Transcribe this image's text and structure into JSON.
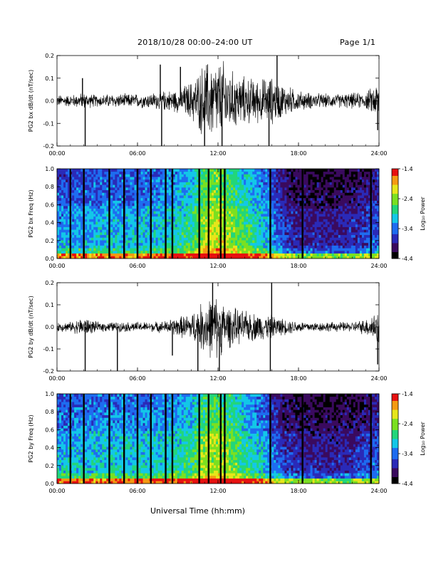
{
  "header": {
    "title": "2018/10/28   00:00–24:00 UT",
    "page": "Page 1/1"
  },
  "footer": {
    "xlabel": "Universal Time (hh:mm)"
  },
  "colors": {
    "trace": "#000000",
    "colormap": [
      "#000000",
      "#3a0a5e",
      "#2a2ab8",
      "#1e6cf0",
      "#13c7e8",
      "#22d67a",
      "#7be021",
      "#e6e61a",
      "#f59a12",
      "#e81010"
    ]
  },
  "chart_data": [
    {
      "type": "line",
      "title": "",
      "ylabel": "PG2 bx dB/dt (nT/sec)",
      "xlabel": "",
      "xlim": [
        0,
        24
      ],
      "ylim": [
        -0.2,
        0.2
      ],
      "xticks": [
        "00:00",
        "06:00",
        "12:00",
        "18:00",
        "24:00"
      ],
      "yticks": [
        "-0.2",
        "-0.1",
        "0.0",
        "0.1",
        "0.2"
      ],
      "envelope": {
        "x": [
          0,
          1,
          2,
          3,
          4,
          5,
          6,
          7,
          8,
          9,
          10,
          10.5,
          11,
          11.5,
          12,
          12.5,
          13,
          14,
          15,
          16,
          17,
          18,
          19,
          20,
          21,
          22,
          23,
          24
        ],
        "amplitude": [
          0.03,
          0.03,
          0.04,
          0.03,
          0.035,
          0.035,
          0.035,
          0.04,
          0.05,
          0.06,
          0.1,
          0.14,
          0.2,
          0.2,
          0.2,
          0.2,
          0.15,
          0.12,
          0.11,
          0.12,
          0.08,
          0.05,
          0.04,
          0.035,
          0.035,
          0.04,
          0.04,
          0.1
        ]
      },
      "spikes": [
        [
          2.1,
          -0.2
        ],
        [
          1.9,
          0.1
        ],
        [
          7.8,
          -0.2
        ],
        [
          7.7,
          0.16
        ],
        [
          9.2,
          0.15
        ],
        [
          11.0,
          -0.2
        ],
        [
          12.3,
          -0.2
        ],
        [
          15.8,
          -0.2
        ],
        [
          16.4,
          0.2
        ],
        [
          23.9,
          -0.13
        ]
      ]
    },
    {
      "type": "heatmap",
      "title": "",
      "ylabel": "PG2 bx Freq (Hz)",
      "xlabel": "",
      "xlim": [
        0,
        24
      ],
      "ylim": [
        0,
        1.0
      ],
      "xticks": [
        "00:00",
        "06:00",
        "12:00",
        "18:00",
        "24:00"
      ],
      "yticks": [
        "0.0",
        "0.2",
        "0.4",
        "0.6",
        "0.8",
        "1.0"
      ],
      "colorbar": {
        "label": "Log₁₀ Power",
        "range": [
          -4.4,
          -1.4
        ],
        "ticks": [
          "-1.4",
          "-2.4",
          "-3.4",
          "-4.4"
        ]
      },
      "activity": {
        "x": [
          0,
          2,
          4,
          6,
          8,
          10,
          11,
          12,
          13,
          14,
          15,
          16,
          17,
          18,
          20,
          22,
          23,
          24
        ],
        "level": [
          0.4,
          0.42,
          0.45,
          0.45,
          0.5,
          0.6,
          0.85,
          0.9,
          0.8,
          0.65,
          0.55,
          0.4,
          0.2,
          0.15,
          0.12,
          0.14,
          0.2,
          0.3
        ]
      },
      "gaps": [
        1.0,
        2.0,
        3.9,
        5.0,
        6.0,
        7.0,
        8.1,
        8.6,
        10.6,
        11.3,
        12.2,
        12.5,
        15.9,
        18.3,
        23.4
      ]
    },
    {
      "type": "line",
      "title": "",
      "ylabel": "PG2 by dB/dt (nT/sec)",
      "xlabel": "",
      "xlim": [
        0,
        24
      ],
      "ylim": [
        -0.2,
        0.2
      ],
      "xticks": [
        "00:00",
        "06:00",
        "12:00",
        "18:00",
        "24:00"
      ],
      "yticks": [
        "-0.2",
        "-0.1",
        "0.0",
        "0.1",
        "0.2"
      ],
      "envelope": {
        "x": [
          0,
          1,
          2,
          3,
          4,
          5,
          6,
          7,
          8,
          9,
          10,
          10.5,
          11,
          11.5,
          12,
          12.5,
          13,
          14,
          15,
          16,
          17,
          18,
          19,
          20,
          21,
          22,
          23,
          24
        ],
        "amplitude": [
          0.025,
          0.025,
          0.05,
          0.025,
          0.025,
          0.025,
          0.025,
          0.025,
          0.03,
          0.05,
          0.07,
          0.1,
          0.14,
          0.16,
          0.16,
          0.12,
          0.1,
          0.08,
          0.07,
          0.06,
          0.04,
          0.03,
          0.025,
          0.025,
          0.025,
          0.025,
          0.04,
          0.1
        ]
      },
      "spikes": [
        [
          2.1,
          -0.2
        ],
        [
          4.5,
          -0.2
        ],
        [
          8.6,
          -0.13
        ],
        [
          10.5,
          -0.2
        ],
        [
          11.6,
          0.2
        ],
        [
          12.1,
          -0.2
        ],
        [
          15.9,
          -0.2
        ],
        [
          16.0,
          0.2
        ],
        [
          23.9,
          -0.17
        ]
      ]
    },
    {
      "type": "heatmap",
      "title": "",
      "ylabel": "PG2 by Freq (Hz)",
      "xlabel": "",
      "xlim": [
        0,
        24
      ],
      "ylim": [
        0,
        1.0
      ],
      "xticks": [
        "00:00",
        "06:00",
        "12:00",
        "18:00",
        "24:00"
      ],
      "yticks": [
        "0.0",
        "0.2",
        "0.4",
        "0.6",
        "0.8",
        "1.0"
      ],
      "colorbar": {
        "label": "Log₁₀ Power",
        "range": [
          -4.4,
          -1.4
        ],
        "ticks": [
          "-1.4",
          "-2.4",
          "-3.4",
          "-4.4"
        ]
      },
      "activity": {
        "x": [
          0,
          2,
          4,
          6,
          8,
          10,
          11,
          12,
          13,
          14,
          15,
          16,
          17,
          18,
          20,
          22,
          23,
          24
        ],
        "level": [
          0.45,
          0.48,
          0.5,
          0.5,
          0.52,
          0.6,
          0.8,
          0.85,
          0.75,
          0.6,
          0.5,
          0.35,
          0.2,
          0.15,
          0.12,
          0.14,
          0.2,
          0.3
        ]
      },
      "gaps": [
        1.0,
        2.0,
        3.9,
        5.0,
        6.0,
        7.0,
        8.1,
        8.6,
        10.6,
        11.3,
        12.2,
        12.5,
        15.9,
        18.3,
        23.4
      ]
    }
  ]
}
